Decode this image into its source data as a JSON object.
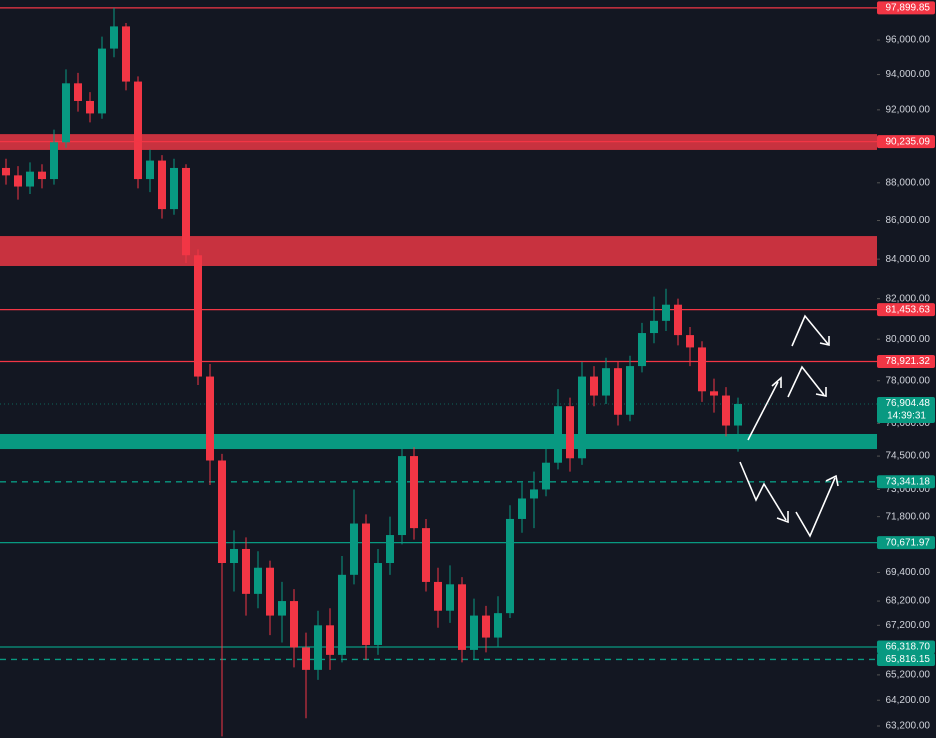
{
  "chart_data": {
    "type": "candlestick",
    "log_scale": true,
    "up_color": "#089981",
    "down_color": "#f23645",
    "ylim": [
      62740,
      98370
    ],
    "yticks": [
      {
        "value": 96000,
        "label": "96,000.00"
      },
      {
        "value": 94000,
        "label": "94,000.00"
      },
      {
        "value": 92000,
        "label": "92,000.00"
      },
      {
        "value": 88000,
        "label": "88,000.00"
      },
      {
        "value": 86000,
        "label": "86,000.00"
      },
      {
        "value": 84000,
        "label": "84,000.00"
      },
      {
        "value": 82000,
        "label": "82,000.00"
      },
      {
        "value": 80000,
        "label": "80,000.00"
      },
      {
        "value": 78000,
        "label": "78,000.00"
      },
      {
        "value": 76000,
        "label": "76,000.00"
      },
      {
        "value": 74500,
        "label": "74,500.00"
      },
      {
        "value": 73000,
        "label": "73,000.00"
      },
      {
        "value": 71800,
        "label": "71,800.00"
      },
      {
        "value": 69400,
        "label": "69,400.00"
      },
      {
        "value": 68200,
        "label": "68,200.00"
      },
      {
        "value": 67200,
        "label": "67,200.00"
      },
      {
        "value": 65200,
        "label": "65,200.00"
      },
      {
        "value": 64200,
        "label": "64,200.00"
      },
      {
        "value": 63200,
        "label": "63,200.00"
      }
    ],
    "open": [
      88800,
      88400,
      87800,
      88600,
      88200,
      90200,
      93500,
      92500,
      91800,
      95500,
      96800,
      93600,
      88200,
      89200,
      86600,
      88800,
      84200,
      78200,
      74300,
      69800,
      70400,
      68500,
      69600,
      67600,
      68200,
      66300,
      65400,
      67200,
      66000,
      69300,
      71500,
      66400,
      69800,
      71000,
      74500,
      71300,
      69000,
      67800,
      68900,
      66200,
      67600,
      66700,
      67700,
      71700,
      72600,
      73000,
      74200,
      76800,
      74400,
      78200,
      77300,
      78600,
      76400,
      78700,
      80300,
      80900,
      81700,
      80200,
      79600,
      77500,
      77300,
      75900
    ],
    "high": [
      89300,
      88900,
      89100,
      89000,
      90900,
      94300,
      94100,
      93000,
      96200,
      97899.85,
      97000,
      93900,
      89800,
      89500,
      89300,
      89000,
      84500,
      78800,
      74600,
      71200,
      70900,
      70300,
      69900,
      69000,
      68700,
      66900,
      67800,
      67900,
      70100,
      73000,
      71900,
      70400,
      71800,
      75300,
      74900,
      71700,
      69600,
      69700,
      69200,
      68300,
      68000,
      68400,
      72300,
      73300,
      73800,
      74900,
      77600,
      77200,
      78900,
      78700,
      79100,
      78900,
      79200,
      80800,
      82100,
      82500,
      82000,
      80600,
      79900,
      78100,
      77700,
      77200
    ],
    "low": [
      87900,
      87100,
      87400,
      87700,
      87900,
      89900,
      91900,
      91300,
      91500,
      95000,
      93100,
      87700,
      87500,
      86100,
      86300,
      83800,
      77800,
      73200,
      62800,
      68600,
      67600,
      67900,
      66800,
      66500,
      65500,
      63500,
      65000,
      65400,
      65700,
      68900,
      65800,
      66000,
      69300,
      70600,
      70800,
      68600,
      67100,
      67300,
      65700,
      65800,
      66100,
      66300,
      67500,
      71100,
      71300,
      72700,
      73900,
      73800,
      74100,
      76800,
      76900,
      75900,
      76100,
      78400,
      79800,
      80400,
      79700,
      78700,
      77000,
      76500,
      75400,
      74700
    ],
    "close": [
      88400,
      87800,
      88600,
      88200,
      90200,
      93500,
      92500,
      91800,
      95500,
      96800,
      93600,
      88200,
      89200,
      86600,
      88800,
      84200,
      78200,
      74300,
      69800,
      70400,
      68500,
      69600,
      67600,
      68200,
      66300,
      65400,
      67200,
      66000,
      69300,
      71500,
      66400,
      69800,
      71000,
      74500,
      71300,
      69000,
      67800,
      68900,
      66200,
      67600,
      66700,
      67700,
      71700,
      72600,
      73000,
      74200,
      76800,
      74400,
      78200,
      77300,
      78600,
      76400,
      78700,
      80300,
      80900,
      81700,
      80200,
      79600,
      77500,
      77300,
      75900,
      76904.48
    ],
    "zones": [
      {
        "from": 89780,
        "to": 90650,
        "color": "#c8323f"
      },
      {
        "from": 83650,
        "to": 85190,
        "color": "#c8323f"
      },
      {
        "from": 74820,
        "to": 75510,
        "color": "#089981"
      }
    ],
    "levels": [
      {
        "value": 97899.85,
        "label": "97,899.85",
        "color": "#f23645",
        "style": "solid"
      },
      {
        "value": 90235.09,
        "label": "90,235.09",
        "color": "#f23645",
        "style": "solid"
      },
      {
        "value": 81453.63,
        "label": "81,453.63",
        "color": "#f23645",
        "style": "solid"
      },
      {
        "value": 78921.32,
        "label": "78,921.32",
        "color": "#f23645",
        "style": "solid"
      },
      {
        "value": 76904.48,
        "label": "76,904.48",
        "color": "#089981",
        "style": "dotted",
        "countdown": "14:39:31"
      },
      {
        "value": 73341.18,
        "label": "73,341.18",
        "color": "#089981",
        "style": "dashed"
      },
      {
        "value": 70671.97,
        "label": "70,671.97",
        "color": "#089981",
        "style": "solid"
      },
      {
        "value": 66318.7,
        "label": "66,318.70",
        "color": "#089981",
        "style": "solid"
      },
      {
        "value": 65816.15,
        "label": "65,816.15",
        "color": "#089981",
        "style": "dashed"
      }
    ]
  }
}
